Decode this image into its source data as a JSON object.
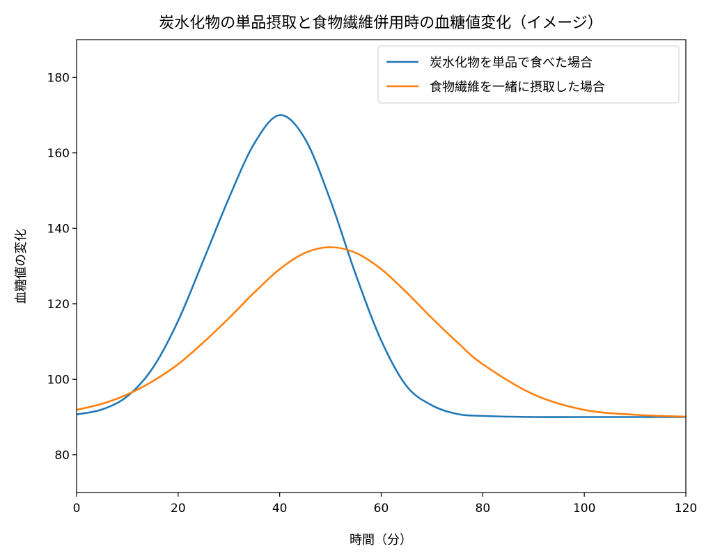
{
  "chart_data": {
    "type": "line",
    "title": "炭水化物の単品摂取と食物繊維併用時の血糖値変化（イメージ）",
    "xlabel": "時間（分）",
    "ylabel": "血糖値の変化",
    "xlim": [
      0,
      120
    ],
    "ylim": [
      70,
      190
    ],
    "xticks": [
      0,
      20,
      40,
      60,
      80,
      100,
      120
    ],
    "yticks": [
      80,
      100,
      120,
      140,
      160,
      180
    ],
    "grid": false,
    "legend_position": "top-right",
    "series": [
      {
        "name": "炭水化物を単品で食べた場合",
        "color": "#1f77b4",
        "x": [
          0,
          5,
          10,
          15,
          20,
          25,
          30,
          35,
          40,
          45,
          50,
          55,
          60,
          65,
          70,
          75,
          80,
          90,
          100,
          110,
          120
        ],
        "y": [
          90.7,
          92.0,
          95.5,
          103.0,
          115.5,
          131.6,
          148.0,
          162.5,
          170.0,
          163.7,
          147.4,
          127.7,
          110.3,
          98.2,
          93.1,
          90.8,
          90.3,
          90.0,
          90.0,
          90.0,
          90.0
        ]
      },
      {
        "name": "食物繊維を一緒に摂取した場合",
        "color": "#ff7f0e",
        "x": [
          0,
          5,
          10,
          15,
          20,
          25,
          30,
          35,
          40,
          45,
          50,
          55,
          60,
          65,
          70,
          75,
          80,
          90,
          100,
          110,
          120
        ],
        "y": [
          91.9,
          93.5,
          96.0,
          99.5,
          104.0,
          109.8,
          116.2,
          123.0,
          129.2,
          133.5,
          135.0,
          133.5,
          129.2,
          123.0,
          116.2,
          109.8,
          104.0,
          96.0,
          91.9,
          90.6,
          90.1
        ]
      }
    ]
  }
}
